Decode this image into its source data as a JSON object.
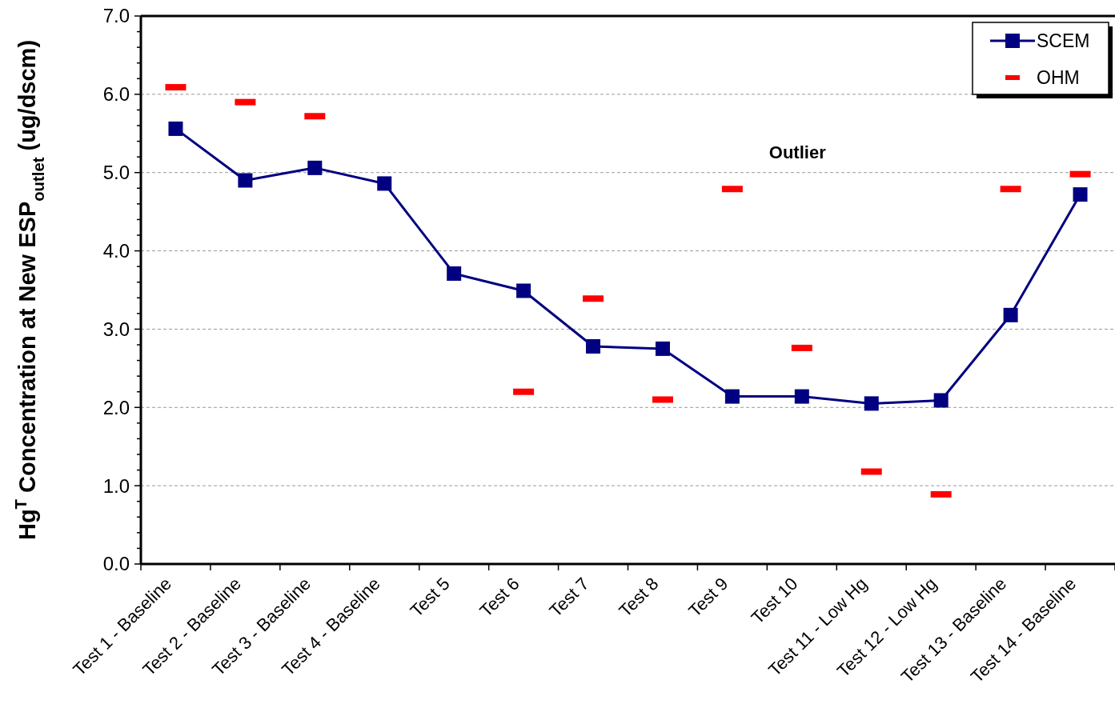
{
  "chart_data": {
    "type": "line",
    "ylabel": "Hg$^{T}$ Concentration at New ESP$_{outlet}$ (ug/dscm)",
    "categories": [
      "Test 1 - Baseline",
      "Test 2 - Baseline",
      "Test 3 - Baseline",
      "Test 4 - Baseline",
      "Test 5",
      "Test 6",
      "Test 7",
      "Test 8",
      "Test 9",
      "Test 10",
      "Test 11 - Low Hg",
      "Test 12 - Low Hg",
      "Test 13 - Baseline",
      "Test 14 - Baseline"
    ],
    "series": [
      {
        "name": "SCEM",
        "color": "#000080",
        "marker": "square",
        "values": [
          5.56,
          4.9,
          5.06,
          4.86,
          3.71,
          3.49,
          2.78,
          2.75,
          2.14,
          2.14,
          2.05,
          2.09,
          3.18,
          4.72
        ]
      },
      {
        "name": "OHM",
        "type": "scatter",
        "color": "#ff0000",
        "values": [
          6.09,
          5.9,
          5.72,
          null,
          null,
          2.2,
          3.39,
          2.1,
          4.79,
          2.76,
          1.18,
          0.89,
          4.79,
          4.98
        ]
      }
    ],
    "ylim": [
      0,
      7
    ],
    "yticks": [
      {
        "value": 0,
        "label": "0.0"
      },
      {
        "value": 0.2,
        "label": null
      },
      {
        "value": 0.4,
        "label": null
      },
      {
        "value": 0.6,
        "label": null
      },
      {
        "value": 0.8,
        "label": null
      },
      {
        "value": 1,
        "label": "1.0"
      },
      {
        "value": 1.2,
        "label": null
      },
      {
        "value": 1.4,
        "label": null
      },
      {
        "value": 1.6,
        "label": null
      },
      {
        "value": 1.8,
        "label": null
      },
      {
        "value": 2,
        "label": "2.0"
      },
      {
        "value": 2.2,
        "label": null
      },
      {
        "value": 2.4,
        "label": null
      },
      {
        "value": 2.6,
        "label": null
      },
      {
        "value": 2.8,
        "label": null
      },
      {
        "value": 3,
        "label": "3.0"
      },
      {
        "value": 3.2,
        "label": null
      },
      {
        "value": 3.4,
        "label": null
      },
      {
        "value": 3.6,
        "label": null
      },
      {
        "value": 3.8,
        "label": null
      },
      {
        "value": 4,
        "label": "4.0"
      },
      {
        "value": 4.2,
        "label": null
      },
      {
        "value": 4.4,
        "label": null
      },
      {
        "value": 4.6,
        "label": null
      },
      {
        "value": 4.8,
        "label": null
      },
      {
        "value": 5,
        "label": "5.0"
      },
      {
        "value": 5.2,
        "label": null
      },
      {
        "value": 5.4,
        "label": null
      },
      {
        "value": 5.6,
        "label": null
      },
      {
        "value": 5.8,
        "label": null
      },
      {
        "value": 6,
        "label": "6.0"
      },
      {
        "value": 6.2,
        "label": null
      },
      {
        "value": 6.4,
        "label": null
      },
      {
        "value": 6.6,
        "label": null
      },
      {
        "value": 6.8,
        "label": null
      },
      {
        "value": 7,
        "label": "7.0"
      }
    ],
    "grid": "y",
    "legend": "top right",
    "annotations": [
      "Outlier"
    ]
  }
}
